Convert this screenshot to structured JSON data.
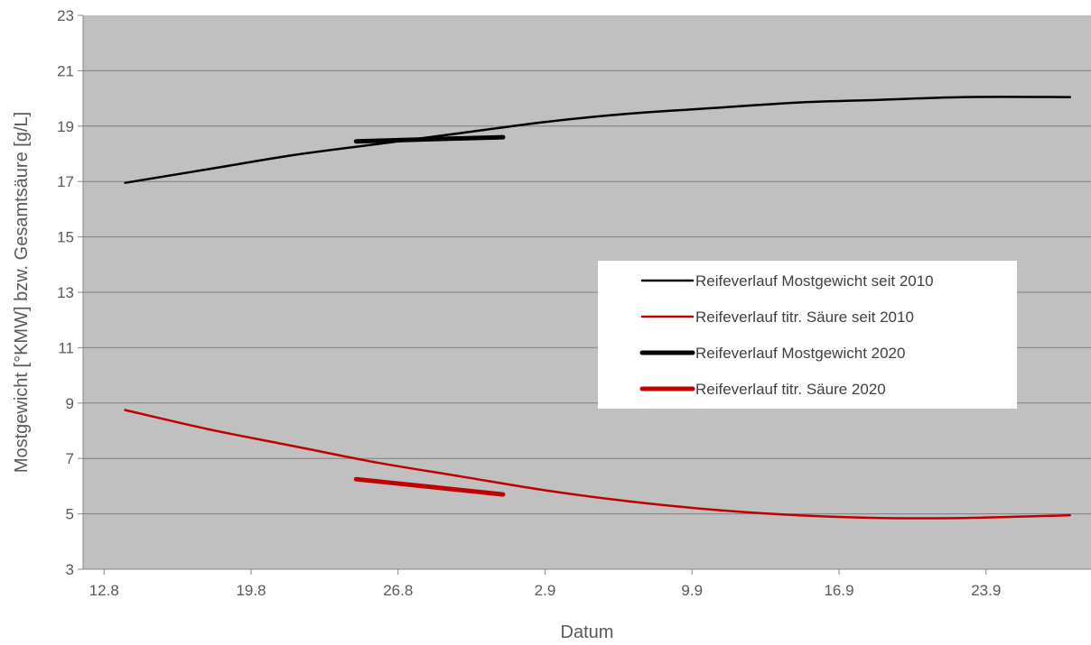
{
  "chart_data": {
    "type": "line",
    "title": "",
    "xlabel": "Datum",
    "ylabel": "Mostgewicht [°KMW] bzw. Gesamtsäure [g/L]",
    "x_unit": "day",
    "xlim": [
      "2020-08-11",
      "2020-09-28"
    ],
    "ylim": [
      3,
      23
    ],
    "x_ticks": [
      {
        "date": "2020-08-12",
        "label": "12.8"
      },
      {
        "date": "2020-08-19",
        "label": "19.8"
      },
      {
        "date": "2020-08-26",
        "label": "26.8"
      },
      {
        "date": "2020-09-02",
        "label": "2.9"
      },
      {
        "date": "2020-09-09",
        "label": "9.9"
      },
      {
        "date": "2020-09-16",
        "label": "16.9"
      },
      {
        "date": "2020-09-23",
        "label": "23.9"
      }
    ],
    "y_ticks": [
      3,
      5,
      7,
      9,
      11,
      13,
      15,
      17,
      19,
      21,
      23
    ],
    "grid": {
      "horizontal": true,
      "vertical": false
    },
    "legend": {
      "placement": "right",
      "entries": [
        "Reifeverlauf Mostgewicht seit 2010",
        "Reifeverlauf titr. Säure seit 2010",
        "Reifeverlauf Mostgewicht 2020",
        "Reifeverlauf titr. Säure 2020"
      ]
    },
    "series": [
      {
        "name": "Reifeverlauf Mostgewicht seit 2010",
        "color": "#000000",
        "style": "thin",
        "points": [
          {
            "date": "2020-08-13",
            "y": 16.95
          },
          {
            "date": "2020-08-17",
            "y": 17.45
          },
          {
            "date": "2020-08-21",
            "y": 17.95
          },
          {
            "date": "2020-08-25",
            "y": 18.35
          },
          {
            "date": "2020-08-29",
            "y": 18.75
          },
          {
            "date": "2020-09-02",
            "y": 19.15
          },
          {
            "date": "2020-09-06",
            "y": 19.45
          },
          {
            "date": "2020-09-10",
            "y": 19.65
          },
          {
            "date": "2020-09-14",
            "y": 19.85
          },
          {
            "date": "2020-09-18",
            "y": 19.95
          },
          {
            "date": "2020-09-22",
            "y": 20.05
          },
          {
            "date": "2020-09-27",
            "y": 20.05
          }
        ]
      },
      {
        "name": "Reifeverlauf titr. Säure seit 2010",
        "color": "#c00000",
        "style": "thin",
        "points": [
          {
            "date": "2020-08-13",
            "y": 8.75
          },
          {
            "date": "2020-08-17",
            "y": 8.05
          },
          {
            "date": "2020-08-21",
            "y": 7.45
          },
          {
            "date": "2020-08-25",
            "y": 6.85
          },
          {
            "date": "2020-08-29",
            "y": 6.35
          },
          {
            "date": "2020-09-02",
            "y": 5.85
          },
          {
            "date": "2020-09-06",
            "y": 5.45
          },
          {
            "date": "2020-09-10",
            "y": 5.15
          },
          {
            "date": "2020-09-14",
            "y": 4.95
          },
          {
            "date": "2020-09-18",
            "y": 4.85
          },
          {
            "date": "2020-09-22",
            "y": 4.85
          },
          {
            "date": "2020-09-27",
            "y": 4.95
          }
        ]
      },
      {
        "name": "Reifeverlauf Mostgewicht 2020",
        "color": "#000000",
        "style": "thick",
        "points": [
          {
            "date": "2020-08-24",
            "y": 18.45
          },
          {
            "date": "2020-08-31",
            "y": 18.6
          }
        ]
      },
      {
        "name": "Reifeverlauf titr. Säure 2020",
        "color": "#c00000",
        "style": "thick",
        "points": [
          {
            "date": "2020-08-24",
            "y": 6.25
          },
          {
            "date": "2020-08-31",
            "y": 5.7
          }
        ]
      }
    ]
  },
  "colors": {
    "plot_background": "#c0c0c0",
    "gridline": "#7f7f7f",
    "legend_background": "#ffffff"
  }
}
